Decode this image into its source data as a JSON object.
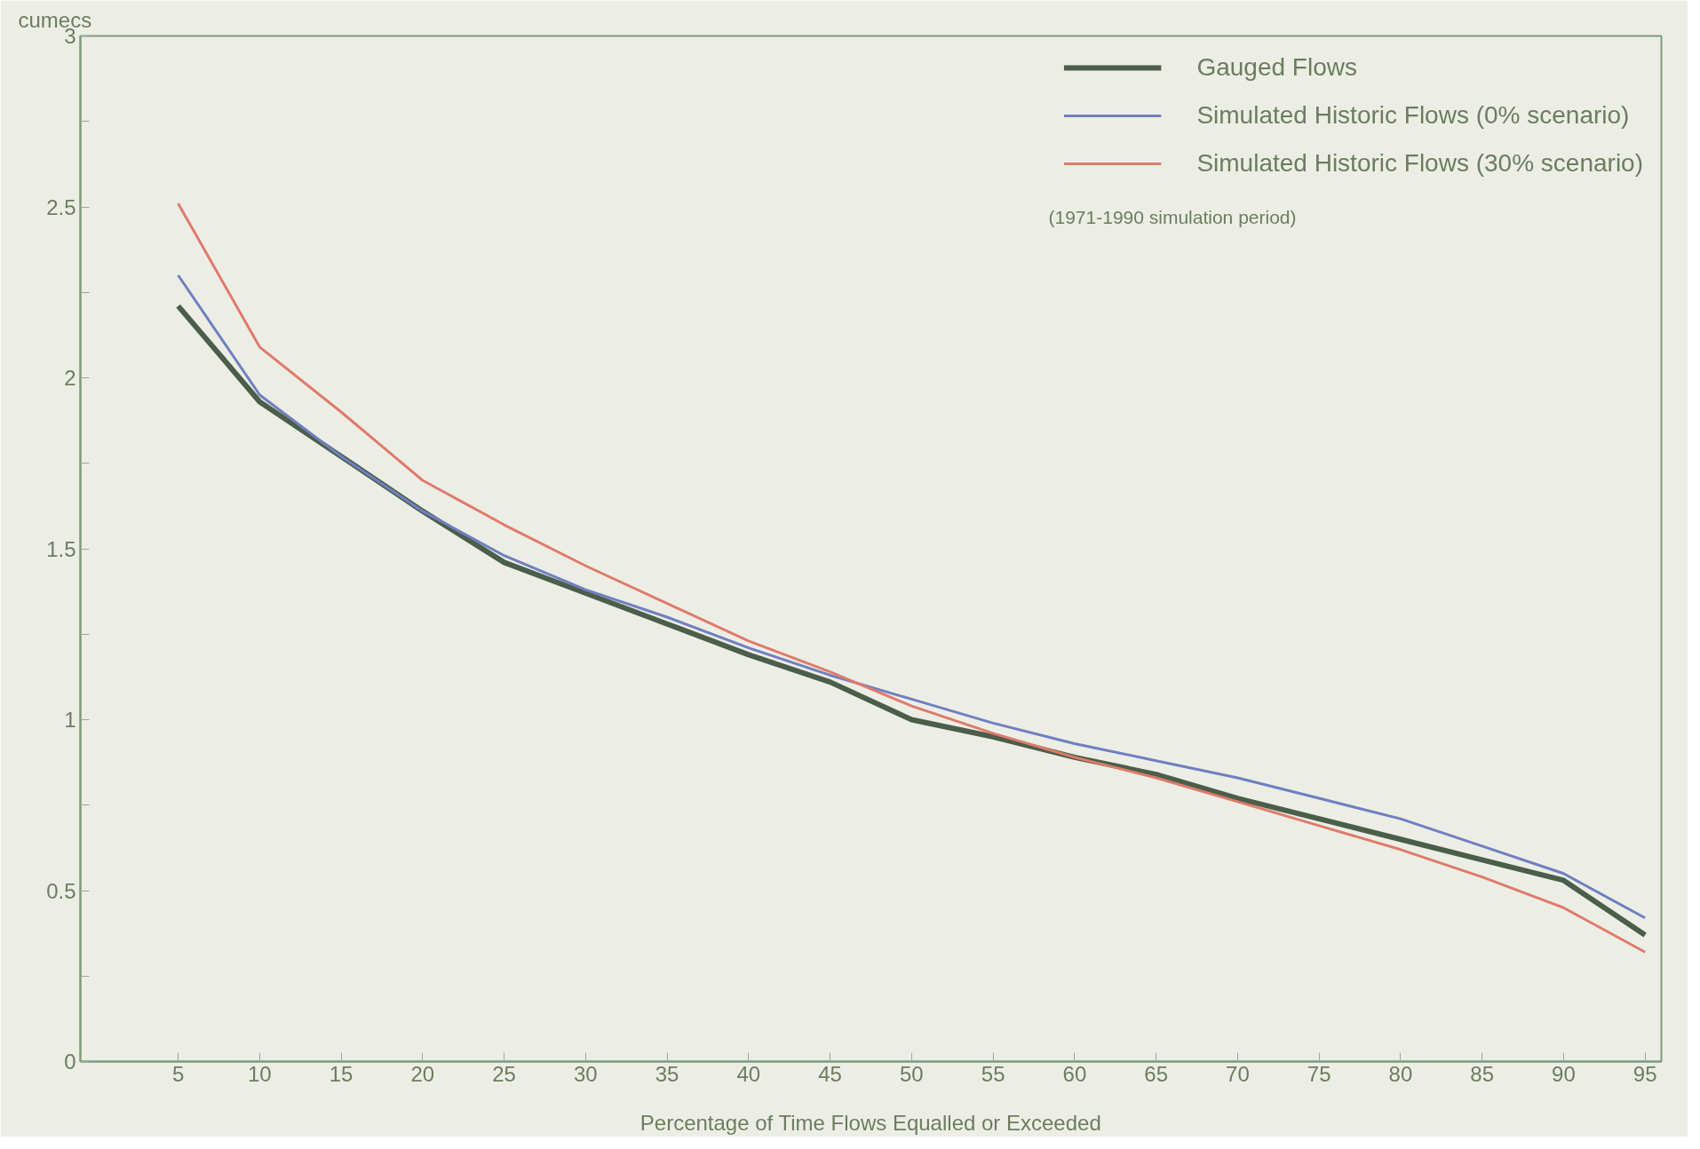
{
  "chart_data": {
    "type": "line",
    "xlabel": "Percentage of Time Flows Equalled or Exceeded",
    "ylabel": "cumecs",
    "x": [
      5,
      10,
      15,
      20,
      25,
      30,
      35,
      40,
      45,
      50,
      55,
      60,
      65,
      70,
      75,
      80,
      85,
      90,
      95
    ],
    "series": [
      {
        "name": "Gauged Flows",
        "color": "#4a5e4a",
        "values": [
          2.21,
          1.93,
          1.77,
          1.61,
          1.46,
          1.37,
          1.28,
          1.19,
          1.11,
          1.0,
          0.95,
          0.89,
          0.84,
          0.77,
          0.71,
          0.65,
          0.59,
          0.53,
          0.37
        ]
      },
      {
        "name": "Simulated Historic Flows (0% scenario)",
        "color": "#6f7fc0",
        "values": [
          2.3,
          1.95,
          1.77,
          1.61,
          1.48,
          1.38,
          1.3,
          1.21,
          1.13,
          1.06,
          0.99,
          0.93,
          0.88,
          0.83,
          0.77,
          0.71,
          0.63,
          0.55,
          0.42
        ]
      },
      {
        "name": "Simulated Historic Flows (30% scenario)",
        "color": "#e07a6a",
        "values": [
          2.51,
          2.09,
          1.9,
          1.7,
          1.57,
          1.45,
          1.34,
          1.23,
          1.14,
          1.04,
          0.96,
          0.89,
          0.83,
          0.76,
          0.69,
          0.62,
          0.54,
          0.45,
          0.32
        ]
      }
    ],
    "xlim": [
      -1,
      96
    ],
    "xticks": [
      5,
      10,
      15,
      20,
      25,
      30,
      35,
      40,
      45,
      50,
      55,
      60,
      65,
      70,
      75,
      80,
      85,
      90,
      95
    ],
    "ylim": [
      0,
      3
    ],
    "yticks": [
      0,
      {
        "value": 0.25,
        "label": null
      },
      0.5,
      {
        "value": 0.75,
        "label": null
      },
      1,
      {
        "value": 1.25,
        "label": null
      },
      1.5,
      {
        "value": 1.75,
        "label": null
      },
      2,
      {
        "value": 2.25,
        "label": null
      },
      2.5,
      {
        "value": 2.75,
        "label": null
      },
      3
    ],
    "grid": false,
    "legend": "top right",
    "marker": "none",
    "line_style": "solid",
    "annotations": [
      "(1971-1990 simulation period)"
    ]
  }
}
